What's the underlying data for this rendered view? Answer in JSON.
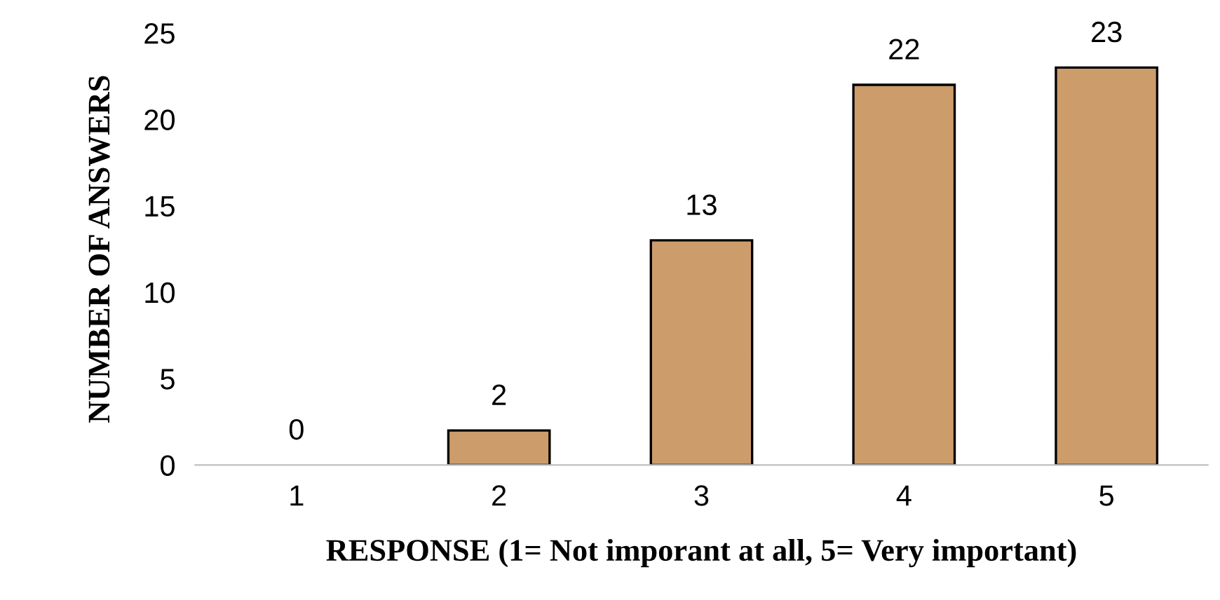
{
  "chart_data": {
    "type": "bar",
    "xlabel": "RESPONSE (1= Not imporant at all, 5= Very important)",
    "ylabel": "NUMBER OF ANSWERS",
    "categories": [
      "1",
      "2",
      "3",
      "4",
      "5"
    ],
    "values": [
      0,
      2,
      13,
      22,
      23
    ],
    "color": "#cc9c6a",
    "ylim": [
      0,
      25
    ],
    "yticks": [
      0,
      5,
      10,
      15,
      20,
      25
    ],
    "grid": false,
    "data_labels": true
  }
}
